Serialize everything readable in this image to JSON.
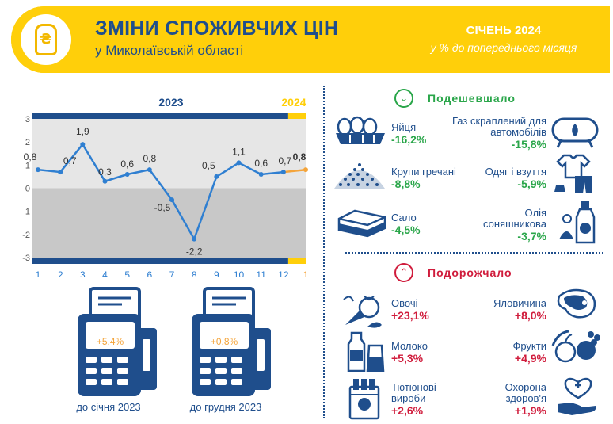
{
  "header": {
    "title": "ЗМІНИ СПОЖИВЧИХ ЦІН",
    "subtitle": "у Миколаївській області",
    "month": "СІЧЕНЬ 2024",
    "unit": "у % до попереднього місяця",
    "logo_symbol": "₴"
  },
  "colors": {
    "brand_blue": "#1f4e8c",
    "accent_yellow": "#ffcf0a",
    "line_blue": "#2f7fd1",
    "line_orange": "#f4a43a",
    "down_green": "#2aa64a",
    "up_red": "#d01c3c"
  },
  "chart_data": {
    "type": "line",
    "title": "",
    "xlabel": "",
    "ylabel": "",
    "ylim": [
      -3,
      3
    ],
    "yticks": [
      "3",
      "2",
      "1",
      "0",
      "-1",
      "-2",
      "-3"
    ],
    "year_labels": [
      "2023",
      "2024"
    ],
    "categories": [
      "1",
      "2",
      "3",
      "4",
      "5",
      "6",
      "7",
      "8",
      "9",
      "10",
      "11",
      "12",
      "1"
    ],
    "series": [
      {
        "values": [
          0.8,
          0.7,
          1.9,
          0.3,
          0.6,
          0.8,
          -0.5,
          -2.2,
          0.5,
          1.1,
          0.6,
          0.7,
          0.8
        ]
      }
    ],
    "data_labels": [
      "0,8",
      "0,7",
      "1,9",
      "0,3",
      "0,6",
      "0,8",
      "-0,5",
      "-2,2",
      "0,5",
      "1,1",
      "0,6",
      "0,7",
      "0,8"
    ],
    "grid": false
  },
  "cumulative": [
    {
      "value": "+5,4%",
      "caption": "до січня 2023"
    },
    {
      "value": "+0,8%",
      "caption": "до грудня 2023"
    }
  ],
  "cheaper": {
    "label": "Подешевшало",
    "icon": "chevron-down-icon",
    "items": [
      {
        "name": "Яйця",
        "value": "-16,2%",
        "icon": "eggs-icon"
      },
      {
        "name": "Газ скраплений для автомобілів",
        "value": "-15,8%",
        "icon": "gas-tank-icon"
      },
      {
        "name": "Крупи гречані",
        "value": "-8,8%",
        "icon": "buckwheat-icon"
      },
      {
        "name": "Одяг і взуття",
        "value": "-5,9%",
        "icon": "clothes-icon"
      },
      {
        "name": "Сало",
        "value": "-4,5%",
        "icon": "lard-icon"
      },
      {
        "name": "Олія соняшникова",
        "value": "-3,7%",
        "icon": "oil-bottle-icon"
      }
    ]
  },
  "pricier": {
    "label": "Подорожчало",
    "icon": "chevron-up-icon",
    "items": [
      {
        "name": "Овочі",
        "value": "+23,1%",
        "icon": "vegetables-icon"
      },
      {
        "name": "Яловичина",
        "value": "+8,0%",
        "icon": "beef-icon"
      },
      {
        "name": "Молоко",
        "value": "+5,3%",
        "icon": "milk-icon"
      },
      {
        "name": "Фрукти",
        "value": "+4,9%",
        "icon": "fruits-icon"
      },
      {
        "name": "Тютюнові вироби",
        "value": "+2,6%",
        "icon": "cigarettes-icon"
      },
      {
        "name": "Охорона здоров'я",
        "value": "+1,9%",
        "icon": "healthcare-icon"
      }
    ]
  }
}
